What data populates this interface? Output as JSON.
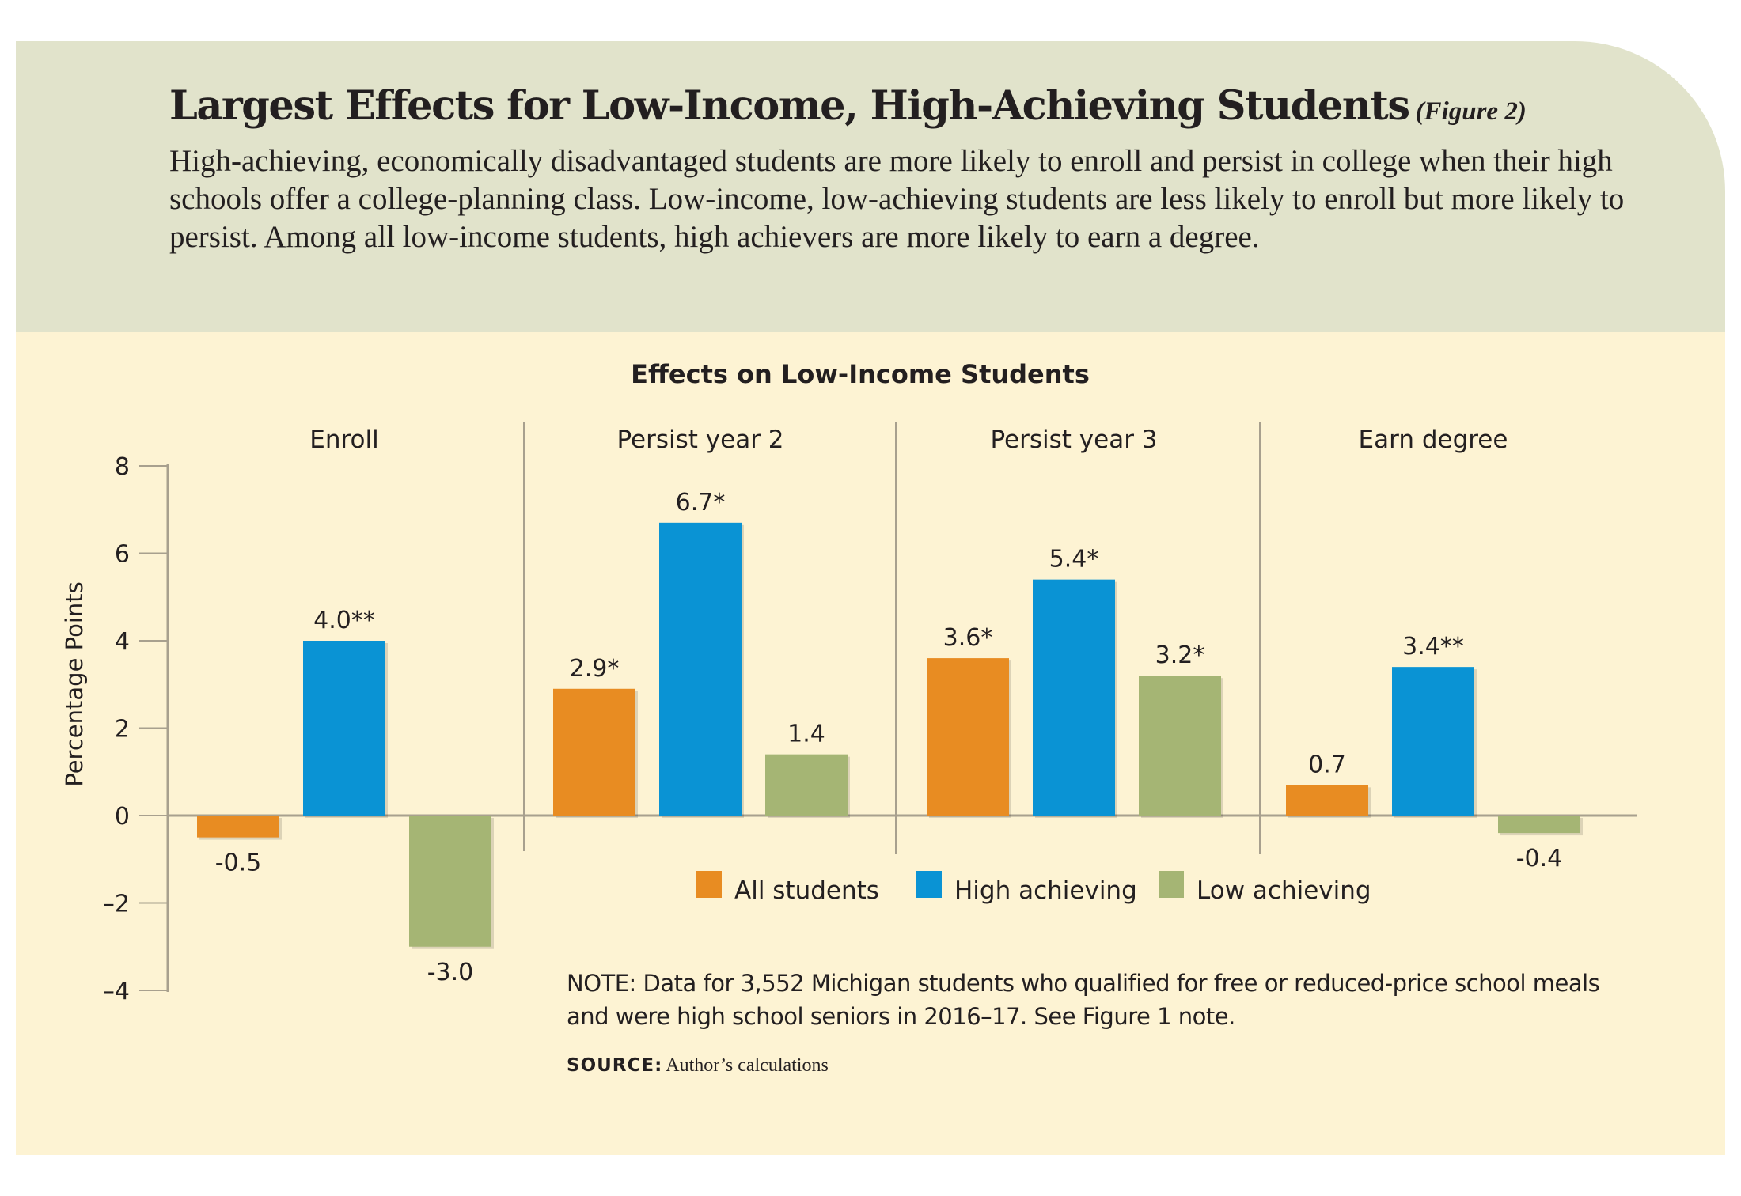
{
  "header": {
    "title": "Largest Effects for Low-Income, High-Achieving Students",
    "figure_label": "(Figure 2)",
    "subtitle": "High-achieving, economically disadvantaged students are more likely to enroll and persist in college when their high schools offer a college-planning class. Low-income, low-achieving students are less likely to enroll but more likely to persist. Among all low-income students, high achievers are more likely to earn a degree."
  },
  "note": "NOTE: Data for 3,552 Michigan students who qualified for free or reduced-price school meals and were high school seniors in 2016–17. See Figure 1 note.",
  "source": {
    "label": "SOURCE:",
    "text": "Author’s calculations"
  },
  "chart_data": {
    "type": "bar",
    "title": "Effects on Low-Income Students",
    "ylabel": "Percentage Points",
    "xlabel": "",
    "ylim": [
      -4,
      8
    ],
    "yticks": [
      -4,
      -2,
      0,
      2,
      4,
      6,
      8
    ],
    "categories": [
      "Enroll",
      "Persist year 2",
      "Persist year 3",
      "Earn degree"
    ],
    "series": [
      {
        "name": "All students",
        "color": "#e88c22",
        "values": [
          -0.5,
          2.9,
          3.6,
          0.7
        ],
        "labels": [
          "-0.5",
          "2.9*",
          "3.6*",
          "0.7"
        ]
      },
      {
        "name": "High achieving",
        "color": "#0a93d4",
        "values": [
          4.0,
          6.7,
          5.4,
          3.4
        ],
        "labels": [
          "4.0**",
          "6.7*",
          "5.4*",
          "3.4**"
        ]
      },
      {
        "name": "Low achieving",
        "color": "#a5b574",
        "values": [
          -3.0,
          1.4,
          3.2,
          -0.4
        ],
        "labels": [
          "-3.0",
          "1.4",
          "3.2*",
          "-0.4"
        ]
      }
    ],
    "legend_position": "bottom-center",
    "grid": false
  }
}
